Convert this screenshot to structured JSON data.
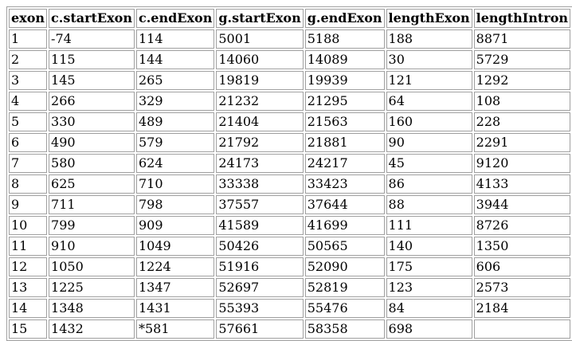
{
  "table": {
    "headers": [
      "exon",
      "c.startExon",
      "c.endExon",
      "g.startExon",
      "g.endExon",
      "lengthExon",
      "lengthIntron"
    ],
    "rows": [
      [
        "1",
        "-74",
        "114",
        "5001",
        "5188",
        "188",
        "8871"
      ],
      [
        "2",
        "115",
        "144",
        "14060",
        "14089",
        "30",
        "5729"
      ],
      [
        "3",
        "145",
        "265",
        "19819",
        "19939",
        "121",
        "1292"
      ],
      [
        "4",
        "266",
        "329",
        "21232",
        "21295",
        "64",
        "108"
      ],
      [
        "5",
        "330",
        "489",
        "21404",
        "21563",
        "160",
        "228"
      ],
      [
        "6",
        "490",
        "579",
        "21792",
        "21881",
        "90",
        "2291"
      ],
      [
        "7",
        "580",
        "624",
        "24173",
        "24217",
        "45",
        "9120"
      ],
      [
        "8",
        "625",
        "710",
        "33338",
        "33423",
        "86",
        "4133"
      ],
      [
        "9",
        "711",
        "798",
        "37557",
        "37644",
        "88",
        "3944"
      ],
      [
        "10",
        "799",
        "909",
        "41589",
        "41699",
        "111",
        "8726"
      ],
      [
        "11",
        "910",
        "1049",
        "50426",
        "50565",
        "140",
        "1350"
      ],
      [
        "12",
        "1050",
        "1224",
        "51916",
        "52090",
        "175",
        "606"
      ],
      [
        "13",
        "1225",
        "1347",
        "52697",
        "52819",
        "123",
        "2573"
      ],
      [
        "14",
        "1348",
        "1431",
        "55393",
        "55476",
        "84",
        "2184"
      ],
      [
        "15",
        "1432",
        "*581",
        "57661",
        "58358",
        "698",
        ""
      ]
    ]
  }
}
